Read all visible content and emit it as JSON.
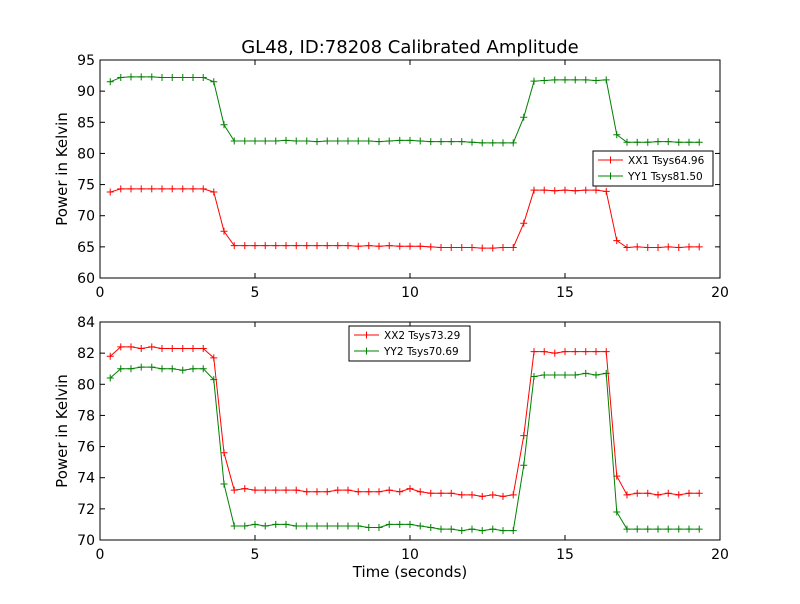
{
  "title": "GL48, ID:78208 Calibrated Amplitude",
  "chart_data": [
    {
      "type": "line",
      "title": "GL48, ID:78208 Calibrated Amplitude",
      "xlabel": "",
      "ylabel": "Power in Kelvin",
      "xlim": [
        0,
        20
      ],
      "ylim": [
        60,
        95
      ],
      "xticks": [
        0,
        5,
        10,
        15,
        20
      ],
      "yticks": [
        60,
        65,
        70,
        75,
        80,
        85,
        90,
        95
      ],
      "grid": false,
      "legend_position": "right",
      "marker": "+",
      "x": [
        0.33,
        0.67,
        1.0,
        1.33,
        1.67,
        2.0,
        2.33,
        2.67,
        3.0,
        3.33,
        3.67,
        4.0,
        4.33,
        4.67,
        5.0,
        5.33,
        5.67,
        6.0,
        6.33,
        6.67,
        7.0,
        7.33,
        7.67,
        8.0,
        8.33,
        8.67,
        9.0,
        9.33,
        9.67,
        10.0,
        10.33,
        10.67,
        11.0,
        11.33,
        11.67,
        12.0,
        12.33,
        12.67,
        13.0,
        13.33,
        13.67,
        14.0,
        14.33,
        14.67,
        15.0,
        15.33,
        15.67,
        16.0,
        16.33,
        16.67,
        17.0,
        17.33,
        17.67,
        18.0,
        18.33,
        18.67,
        19.0,
        19.33
      ],
      "series": [
        {
          "name": "XX1 Tsys64.96",
          "color": "#ff0000",
          "values": [
            73.8,
            74.3,
            74.3,
            74.3,
            74.3,
            74.3,
            74.3,
            74.3,
            74.3,
            74.3,
            73.8,
            67.5,
            65.2,
            65.2,
            65.2,
            65.2,
            65.2,
            65.2,
            65.2,
            65.2,
            65.2,
            65.2,
            65.2,
            65.2,
            65.1,
            65.2,
            65.1,
            65.2,
            65.1,
            65.1,
            65.1,
            65.0,
            64.9,
            64.9,
            64.9,
            64.9,
            64.8,
            64.8,
            64.9,
            64.9,
            68.8,
            74.1,
            74.1,
            74.0,
            74.1,
            74.0,
            74.1,
            74.1,
            73.9,
            66.0,
            64.9,
            65.0,
            64.9,
            64.9,
            65.0,
            64.9,
            65.0,
            65.0
          ]
        },
        {
          "name": "YY1 Tsys81.50",
          "color": "#008000",
          "values": [
            91.5,
            92.2,
            92.3,
            92.3,
            92.3,
            92.2,
            92.2,
            92.2,
            92.2,
            92.2,
            91.5,
            84.6,
            82.0,
            82.0,
            82.0,
            82.0,
            82.0,
            82.1,
            82.0,
            82.0,
            81.9,
            82.0,
            82.0,
            82.0,
            82.0,
            82.0,
            81.9,
            82.0,
            82.1,
            82.1,
            82.0,
            81.9,
            81.9,
            81.9,
            81.9,
            81.8,
            81.7,
            81.7,
            81.7,
            81.7,
            85.8,
            91.6,
            91.7,
            91.8,
            91.8,
            91.8,
            91.8,
            91.7,
            91.8,
            83.0,
            81.8,
            81.8,
            81.8,
            81.9,
            81.9,
            81.8,
            81.8,
            81.8
          ]
        }
      ]
    },
    {
      "type": "line",
      "title": "",
      "xlabel": "Time (seconds)",
      "ylabel": "Power in Kelvin",
      "xlim": [
        0,
        20
      ],
      "ylim": [
        70,
        84
      ],
      "xticks": [
        0,
        5,
        10,
        15,
        20
      ],
      "yticks": [
        70,
        72,
        74,
        76,
        78,
        80,
        82,
        84
      ],
      "grid": false,
      "legend_position": "top-center",
      "marker": "+",
      "x": [
        0.33,
        0.67,
        1.0,
        1.33,
        1.67,
        2.0,
        2.33,
        2.67,
        3.0,
        3.33,
        3.67,
        4.0,
        4.33,
        4.67,
        5.0,
        5.33,
        5.67,
        6.0,
        6.33,
        6.67,
        7.0,
        7.33,
        7.67,
        8.0,
        8.33,
        8.67,
        9.0,
        9.33,
        9.67,
        10.0,
        10.33,
        10.67,
        11.0,
        11.33,
        11.67,
        12.0,
        12.33,
        12.67,
        13.0,
        13.33,
        13.67,
        14.0,
        14.33,
        14.67,
        15.0,
        15.33,
        15.67,
        16.0,
        16.33,
        16.67,
        17.0,
        17.33,
        17.67,
        18.0,
        18.33,
        18.67,
        19.0,
        19.33
      ],
      "series": [
        {
          "name": "XX2 Tsys73.29",
          "color": "#ff0000",
          "values": [
            81.8,
            82.4,
            82.4,
            82.3,
            82.4,
            82.3,
            82.3,
            82.3,
            82.3,
            82.3,
            81.7,
            75.6,
            73.2,
            73.3,
            73.2,
            73.2,
            73.2,
            73.2,
            73.2,
            73.1,
            73.1,
            73.1,
            73.2,
            73.2,
            73.1,
            73.1,
            73.1,
            73.2,
            73.1,
            73.3,
            73.1,
            73.0,
            73.0,
            73.0,
            72.9,
            72.9,
            72.8,
            72.9,
            72.8,
            72.9,
            76.7,
            82.1,
            82.1,
            82.0,
            82.1,
            82.1,
            82.1,
            82.1,
            82.1,
            74.1,
            72.9,
            73.0,
            73.0,
            72.9,
            73.0,
            72.9,
            73.0,
            73.0
          ]
        },
        {
          "name": "YY2 Tsys70.69",
          "color": "#008000",
          "values": [
            80.4,
            81.0,
            81.0,
            81.1,
            81.1,
            81.0,
            81.0,
            80.9,
            81.0,
            81.0,
            80.3,
            73.6,
            70.9,
            70.9,
            71.0,
            70.9,
            71.0,
            71.0,
            70.9,
            70.9,
            70.9,
            70.9,
            70.9,
            70.9,
            70.9,
            70.8,
            70.8,
            71.0,
            71.0,
            71.0,
            70.9,
            70.8,
            70.7,
            70.7,
            70.6,
            70.7,
            70.6,
            70.7,
            70.6,
            70.6,
            74.8,
            80.5,
            80.6,
            80.6,
            80.6,
            80.6,
            80.7,
            80.6,
            80.7,
            71.8,
            70.7,
            70.7,
            70.7,
            70.7,
            70.7,
            70.7,
            70.7,
            70.7
          ]
        }
      ]
    }
  ]
}
